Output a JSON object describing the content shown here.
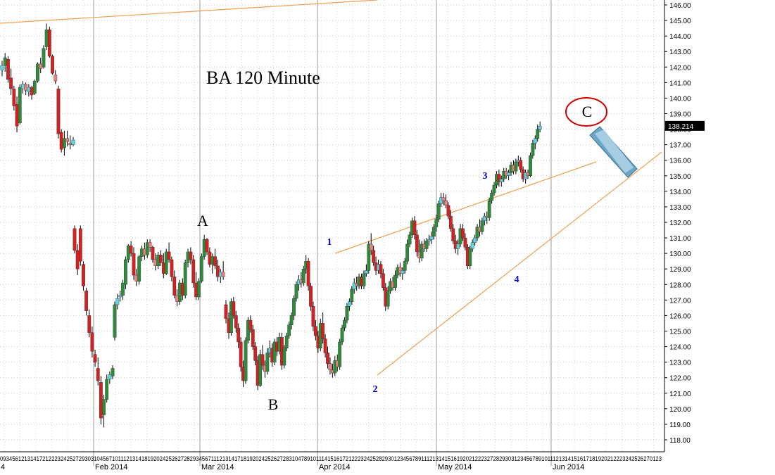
{
  "chart_data": {
    "type": "candlestick",
    "title": "BA 120 Minute",
    "ylim": [
      117.3,
      146.8
    ],
    "yticks": [
      "146.00",
      "145.00",
      "144.00",
      "143.00",
      "142.00",
      "141.00",
      "140.00",
      "139.00",
      "138.00",
      "137.00",
      "136.00",
      "135.00",
      "134.00",
      "133.00",
      "132.00",
      "131.00",
      "130.00",
      "129.00",
      "128.00",
      "127.00",
      "126.00",
      "125.00",
      "124.00",
      "123.00",
      "122.00",
      "121.00",
      "120.00",
      "119.00",
      "118.00"
    ],
    "current_price": "138.214",
    "xlabels": [
      "4",
      "Feb 2014",
      "Mar 2014",
      "Apr 2014",
      "May 2014",
      "Jun 2014"
    ],
    "day_ticks": "0934561213141721222324252729303104567101112131418192024252627282934567111213141718192024252627283104789101114151617212223242528293012345678911121314151619202122232728293031234567891011121314151617181920212223242526270123",
    "grid": true,
    "colors": {
      "up": "#2e8b3a",
      "down": "#d42020",
      "up_cyan": "#5ad8e6",
      "down_pink": "#f08080",
      "trendline": "#f0a050",
      "wick": "#000000",
      "label": "#0000cc",
      "circle": "#cc0000"
    },
    "wave_labels_abc": [
      {
        "label": "A",
        "at": "Mar 2014 high",
        "price": 131.2
      },
      {
        "label": "B",
        "at": "Mar 2014 low",
        "price": 121.6
      },
      {
        "label": "C",
        "at": "Jun 2014 high",
        "price": 138.5
      }
    ],
    "wave_labels_numbers": [
      {
        "label": "1",
        "price": 129.9
      },
      {
        "label": "2",
        "price": 122.0
      },
      {
        "label": "3",
        "price": 133.9
      },
      {
        "label": "4",
        "price": 129.0
      }
    ],
    "candles": [
      [
        141.8,
        142.4,
        141.4,
        142.1
      ],
      [
        142.1,
        142.9,
        141.7,
        142.6
      ],
      [
        142.5,
        142.7,
        141.0,
        141.2
      ],
      [
        141.3,
        141.9,
        140.2,
        140.6
      ],
      [
        140.6,
        140.8,
        139.2,
        139.5
      ],
      [
        139.6,
        140.1,
        137.8,
        138.2
      ],
      [
        138.4,
        140.9,
        138.3,
        140.7
      ],
      [
        140.6,
        141.1,
        140.3,
        140.9
      ],
      [
        140.9,
        141.0,
        140.2,
        140.5
      ],
      [
        140.4,
        140.9,
        140.1,
        140.7
      ],
      [
        140.7,
        140.8,
        139.9,
        140.2
      ],
      [
        140.3,
        141.2,
        140.2,
        141.1
      ],
      [
        141.1,
        142.3,
        141.0,
        142.2
      ],
      [
        142.2,
        142.6,
        141.6,
        141.9
      ],
      [
        142.0,
        143.4,
        141.9,
        143.2
      ],
      [
        143.3,
        144.8,
        143.1,
        144.4
      ],
      [
        144.4,
        144.6,
        142.6,
        142.7
      ],
      [
        142.7,
        142.8,
        141.5,
        141.6
      ],
      [
        141.5,
        141.8,
        140.9,
        141.1
      ],
      [
        140.6,
        140.8,
        137.4,
        137.7
      ],
      [
        137.8,
        138.0,
        136.5,
        136.7
      ],
      [
        136.8,
        137.9,
        136.3,
        137.4
      ],
      [
        137.4,
        137.9,
        136.9,
        137.2
      ],
      [
        137.1,
        137.6,
        136.7,
        137.0
      ],
      [
        137.0,
        137.5,
        136.9,
        137.3
      ],
      [
        131.6,
        131.8,
        130.0,
        130.2
      ],
      [
        130.2,
        130.6,
        128.6,
        129.0
      ],
      [
        131.6,
        131.8,
        129.2,
        129.5
      ],
      [
        129.3,
        129.5,
        127.6,
        127.9
      ],
      [
        127.6,
        127.8,
        126.0,
        126.3
      ],
      [
        126.0,
        126.4,
        124.6,
        124.9
      ],
      [
        124.9,
        125.3,
        123.3,
        123.7
      ],
      [
        123.5,
        123.8,
        122.7,
        123.0
      ],
      [
        122.6,
        123.3,
        121.5,
        121.8
      ],
      [
        121.7,
        122.1,
        119.0,
        119.4
      ],
      [
        119.6,
        120.9,
        118.8,
        120.6
      ],
      [
        120.6,
        122.2,
        120.4,
        121.9
      ],
      [
        121.9,
        122.4,
        121.6,
        122.2
      ],
      [
        122.1,
        122.8,
        121.9,
        122.6
      ],
      [
        124.6,
        126.9,
        124.4,
        126.7
      ],
      [
        126.7,
        127.4,
        126.4,
        127.1
      ],
      [
        127.2,
        127.6,
        126.9,
        127.3
      ],
      [
        127.3,
        128.3,
        127.0,
        128.1
      ],
      [
        128.0,
        129.8,
        127.7,
        129.6
      ],
      [
        129.6,
        130.6,
        129.4,
        130.5
      ],
      [
        130.5,
        130.8,
        129.8,
        130.0
      ],
      [
        130.0,
        130.4,
        128.3,
        128.6
      ],
      [
        128.6,
        129.0,
        127.9,
        128.2
      ],
      [
        128.2,
        129.9,
        128.0,
        129.8
      ],
      [
        129.8,
        130.5,
        129.5,
        130.3
      ],
      [
        130.3,
        130.7,
        129.6,
        129.9
      ],
      [
        129.9,
        130.9,
        129.7,
        130.7
      ],
      [
        130.7,
        130.9,
        130.1,
        130.4
      ],
      [
        130.4,
        130.5,
        129.4,
        129.6
      ],
      [
        129.6,
        130.0,
        128.9,
        129.2
      ],
      [
        129.2,
        130.1,
        129.0,
        129.9
      ],
      [
        129.9,
        130.2,
        129.2,
        129.4
      ],
      [
        129.4,
        130.0,
        128.4,
        128.7
      ],
      [
        128.7,
        130.3,
        128.6,
        130.1
      ],
      [
        130.1,
        130.7,
        129.4,
        129.6
      ],
      [
        129.6,
        129.8,
        128.2,
        128.5
      ],
      [
        128.5,
        128.9,
        127.1,
        127.3
      ],
      [
        127.3,
        127.7,
        126.6,
        126.9
      ],
      [
        126.9,
        128.3,
        126.7,
        128.1
      ],
      [
        128.1,
        128.4,
        127.0,
        127.3
      ],
      [
        127.3,
        129.6,
        127.1,
        129.4
      ],
      [
        129.4,
        130.3,
        129.1,
        130.1
      ],
      [
        130.1,
        130.4,
        129.3,
        129.6
      ],
      [
        129.6,
        129.9,
        127.8,
        128.1
      ],
      [
        128.1,
        128.8,
        127.0,
        127.2
      ],
      [
        127.2,
        128.4,
        127.0,
        128.2
      ],
      [
        128.2,
        130.0,
        128.1,
        129.8
      ],
      [
        129.8,
        131.2,
        129.6,
        130.9
      ],
      [
        130.9,
        131.0,
        129.9,
        130.1
      ],
      [
        130.1,
        130.4,
        129.1,
        129.3
      ],
      [
        129.3,
        130.0,
        128.7,
        129.8
      ],
      [
        129.8,
        130.3,
        129.0,
        129.2
      ],
      [
        129.2,
        129.6,
        128.2,
        128.5
      ],
      [
        128.5,
        129.0,
        128.1,
        128.8
      ],
      [
        128.8,
        129.5,
        128.3,
        128.5
      ],
      [
        126.7,
        127.0,
        125.5,
        125.8
      ],
      [
        125.8,
        126.2,
        124.5,
        124.9
      ],
      [
        124.9,
        127.1,
        124.7,
        126.9
      ],
      [
        126.9,
        127.2,
        125.8,
        126.0
      ],
      [
        126.0,
        126.3,
        124.9,
        125.2
      ],
      [
        125.2,
        125.5,
        123.9,
        124.3
      ],
      [
        124.3,
        124.6,
        122.4,
        122.7
      ],
      [
        122.7,
        123.1,
        121.4,
        121.8
      ],
      [
        121.8,
        124.6,
        121.6,
        124.4
      ],
      [
        124.4,
        125.9,
        124.2,
        125.7
      ],
      [
        125.7,
        126.0,
        124.9,
        125.1
      ],
      [
        125.1,
        125.4,
        123.8,
        124.0
      ],
      [
        124.0,
        124.3,
        122.8,
        123.1
      ],
      [
        123.1,
        123.4,
        121.2,
        121.5
      ],
      [
        121.5,
        123.8,
        121.4,
        123.5
      ],
      [
        123.5,
        124.1,
        122.5,
        122.8
      ],
      [
        122.8,
        123.1,
        122.0,
        122.4
      ],
      [
        122.4,
        123.9,
        122.2,
        123.6
      ],
      [
        123.6,
        124.4,
        123.3,
        123.9
      ],
      [
        123.9,
        124.2,
        122.7,
        123.0
      ],
      [
        123.0,
        124.5,
        122.8,
        124.3
      ],
      [
        124.3,
        124.6,
        123.4,
        123.7
      ],
      [
        123.7,
        124.9,
        123.5,
        124.6
      ],
      [
        124.6,
        124.9,
        122.5,
        122.8
      ],
      [
        122.8,
        124.1,
        122.6,
        123.9
      ],
      [
        123.9,
        124.9,
        123.7,
        124.7
      ],
      [
        124.7,
        125.6,
        124.5,
        125.4
      ],
      [
        125.4,
        126.2,
        125.1,
        126.0
      ],
      [
        126.0,
        127.3,
        125.7,
        127.1
      ],
      [
        127.1,
        128.2,
        126.9,
        128.0
      ],
      [
        128.0,
        128.6,
        127.6,
        128.3
      ],
      [
        128.3,
        128.8,
        127.8,
        128.1
      ],
      [
        128.1,
        129.2,
        127.9,
        129.0
      ],
      [
        129.0,
        129.9,
        128.7,
        129.5
      ],
      [
        129.5,
        129.7,
        127.6,
        127.9
      ],
      [
        127.9,
        128.1,
        126.3,
        126.6
      ],
      [
        126.6,
        126.9,
        125.0,
        125.3
      ],
      [
        125.3,
        125.7,
        124.4,
        124.7
      ],
      [
        124.7,
        125.0,
        123.6,
        123.9
      ],
      [
        123.9,
        125.8,
        123.7,
        125.5
      ],
      [
        125.5,
        126.2,
        124.2,
        124.5
      ],
      [
        124.5,
        124.8,
        123.3,
        123.6
      ],
      [
        123.6,
        124.0,
        122.6,
        122.9
      ],
      [
        122.9,
        123.3,
        122.2,
        122.5
      ],
      [
        122.5,
        122.9,
        122.0,
        122.3
      ],
      [
        122.3,
        123.4,
        122.1,
        123.1
      ],
      [
        123.1,
        123.5,
        122.4,
        122.7
      ],
      [
        122.7,
        124.5,
        122.5,
        124.3
      ],
      [
        124.3,
        125.4,
        124.1,
        125.2
      ],
      [
        125.2,
        125.9,
        125.0,
        125.7
      ],
      [
        125.7,
        126.8,
        125.5,
        126.6
      ],
      [
        126.6,
        127.1,
        126.3,
        126.9
      ],
      [
        126.9,
        127.9,
        126.7,
        127.7
      ],
      [
        127.7,
        128.4,
        127.4,
        128.1
      ],
      [
        128.1,
        128.5,
        127.6,
        127.9
      ],
      [
        127.9,
        128.7,
        127.7,
        128.5
      ],
      [
        128.5,
        128.7,
        127.7,
        127.9
      ],
      [
        127.9,
        128.9,
        127.7,
        128.7
      ],
      [
        128.7,
        129.3,
        128.5,
        128.9
      ],
      [
        128.9,
        130.8,
        128.7,
        130.6
      ],
      [
        130.6,
        131.3,
        129.9,
        130.2
      ],
      [
        130.2,
        130.5,
        129.2,
        129.4
      ],
      [
        129.4,
        129.8,
        128.6,
        128.9
      ],
      [
        128.9,
        129.6,
        128.7,
        129.3
      ],
      [
        129.3,
        129.5,
        128.4,
        128.7
      ],
      [
        128.7,
        129.0,
        127.6,
        127.8
      ],
      [
        127.8,
        128.1,
        126.3,
        126.6
      ],
      [
        126.6,
        127.9,
        126.4,
        127.6
      ],
      [
        127.6,
        128.4,
        127.4,
        128.2
      ],
      [
        128.2,
        128.5,
        127.6,
        127.8
      ],
      [
        127.8,
        128.9,
        127.6,
        128.6
      ],
      [
        128.6,
        129.3,
        128.4,
        129.1
      ],
      [
        129.1,
        129.4,
        128.5,
        128.7
      ],
      [
        128.7,
        129.1,
        128.3,
        128.9
      ],
      [
        128.9,
        129.7,
        128.7,
        129.5
      ],
      [
        129.5,
        130.9,
        129.3,
        130.6
      ],
      [
        130.6,
        131.4,
        130.4,
        131.2
      ],
      [
        131.2,
        132.3,
        131.0,
        132.1
      ],
      [
        132.1,
        132.4,
        130.9,
        131.2
      ],
      [
        131.2,
        131.5,
        129.8,
        130.1
      ],
      [
        130.1,
        130.9,
        129.4,
        129.7
      ],
      [
        129.7,
        130.8,
        129.5,
        130.6
      ],
      [
        130.6,
        130.9,
        130.1,
        130.3
      ],
      [
        130.3,
        131.0,
        130.1,
        130.8
      ],
      [
        130.8,
        131.2,
        130.5,
        130.9
      ],
      [
        130.9,
        131.4,
        130.6,
        131.1
      ],
      [
        131.1,
        131.9,
        130.9,
        131.7
      ],
      [
        131.7,
        132.5,
        131.4,
        132.2
      ],
      [
        132.2,
        133.4,
        132.0,
        133.2
      ],
      [
        133.2,
        133.9,
        133.0,
        133.6
      ],
      [
        133.6,
        133.9,
        133.1,
        133.4
      ],
      [
        133.4,
        133.8,
        132.9,
        133.1
      ],
      [
        133.1,
        133.3,
        132.2,
        132.4
      ],
      [
        132.4,
        132.8,
        131.4,
        131.6
      ],
      [
        131.6,
        131.9,
        130.6,
        130.8
      ],
      [
        130.8,
        131.2,
        130.0,
        130.3
      ],
      [
        130.3,
        130.9,
        129.9,
        130.6
      ],
      [
        130.6,
        131.9,
        130.4,
        131.6
      ],
      [
        131.6,
        131.9,
        130.8,
        131.0
      ],
      [
        131.0,
        131.3,
        130.2,
        130.4
      ],
      [
        130.4,
        130.6,
        129.0,
        129.2
      ],
      [
        129.2,
        130.5,
        129.0,
        130.3
      ],
      [
        130.3,
        130.9,
        130.1,
        130.7
      ],
      [
        130.7,
        131.2,
        130.5,
        131.0
      ],
      [
        131.0,
        131.9,
        130.8,
        131.7
      ],
      [
        131.7,
        132.2,
        131.1,
        131.4
      ],
      [
        131.4,
        132.3,
        131.2,
        132.1
      ],
      [
        132.1,
        132.6,
        131.8,
        132.4
      ],
      [
        132.4,
        132.7,
        131.9,
        132.3
      ],
      [
        132.3,
        133.6,
        132.1,
        133.4
      ],
      [
        133.4,
        134.1,
        133.2,
        133.9
      ],
      [
        133.9,
        134.6,
        133.7,
        134.4
      ],
      [
        134.4,
        135.3,
        134.2,
        135.1
      ],
      [
        135.1,
        135.4,
        134.3,
        134.6
      ],
      [
        134.6,
        135.0,
        134.3,
        134.8
      ],
      [
        134.8,
        135.5,
        134.6,
        135.3
      ],
      [
        135.3,
        135.5,
        134.8,
        135.0
      ],
      [
        135.0,
        135.4,
        134.7,
        135.2
      ],
      [
        135.2,
        135.9,
        135.0,
        135.7
      ],
      [
        135.7,
        136.0,
        135.1,
        135.3
      ],
      [
        135.3,
        136.1,
        135.1,
        135.9
      ],
      [
        135.9,
        136.3,
        135.6,
        136.0
      ],
      [
        136.0,
        136.2,
        135.2,
        135.4
      ],
      [
        135.4,
        135.6,
        134.6,
        134.8
      ],
      [
        134.8,
        135.4,
        134.5,
        135.2
      ],
      [
        135.2,
        135.4,
        134.8,
        135.0
      ],
      [
        135.0,
        136.5,
        134.9,
        136.3
      ],
      [
        136.3,
        137.3,
        136.1,
        137.1
      ],
      [
        137.1,
        137.6,
        136.7,
        137.4
      ],
      [
        137.4,
        138.3,
        137.2,
        138.0
      ],
      [
        138.0,
        138.5,
        137.8,
        138.2
      ]
    ]
  }
}
